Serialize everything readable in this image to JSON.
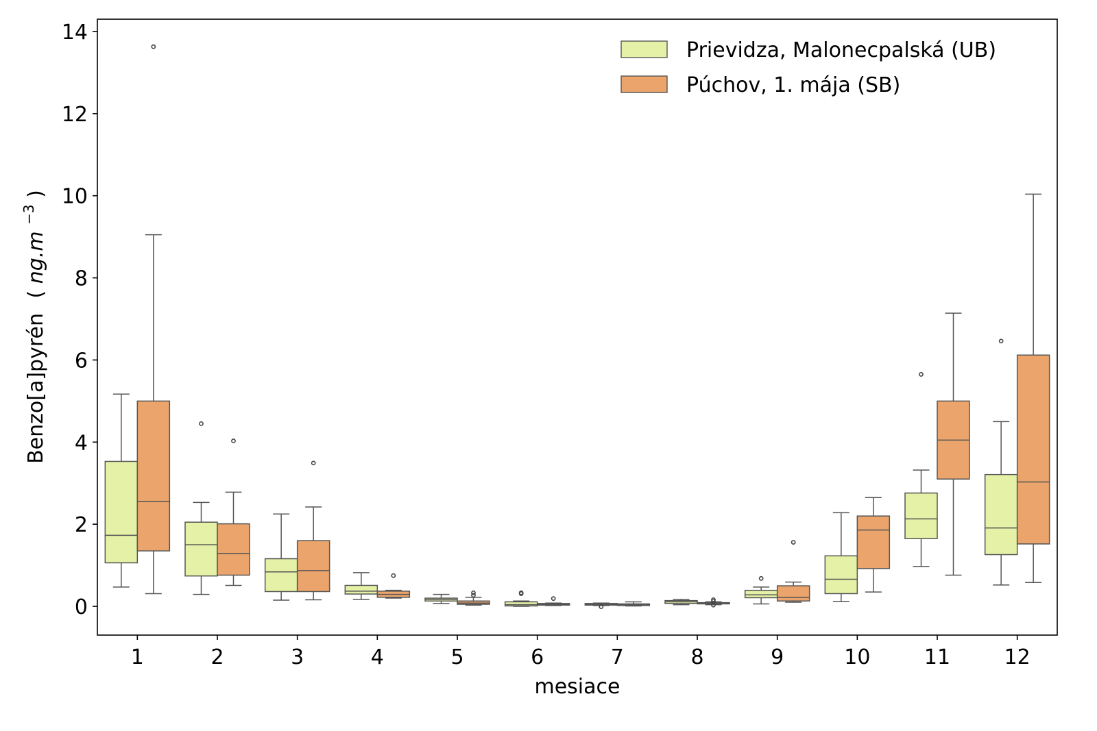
{
  "chart_data": {
    "type": "boxplot",
    "xlabel": "mesiace",
    "ylabel": {
      "main": "Benzo[a]pyrén",
      "unit_open": "(",
      "unit": "ng.m",
      "unit_exp": "−3",
      "unit_close": ")"
    },
    "categories": [
      "1",
      "2",
      "3",
      "4",
      "5",
      "6",
      "7",
      "8",
      "9",
      "10",
      "11",
      "12"
    ],
    "ylim": [
      -0.7,
      14.3
    ],
    "yticks": [
      0,
      2,
      4,
      6,
      8,
      10,
      12,
      14
    ],
    "grid": false,
    "legend_position": "top-right",
    "series": [
      {
        "name": "Prievidza, Malonecpalská (UB)",
        "color": "#e5f1a6",
        "boxes": [
          {
            "whislo": 0.47,
            "q1": 1.06,
            "med": 1.73,
            "q3": 3.53,
            "whishi": 5.17,
            "fliers": []
          },
          {
            "whislo": 0.29,
            "q1": 0.74,
            "med": 1.5,
            "q3": 2.05,
            "whishi": 2.53,
            "fliers": [
              4.45
            ]
          },
          {
            "whislo": 0.15,
            "q1": 0.36,
            "med": 0.84,
            "q3": 1.16,
            "whishi": 2.25,
            "fliers": []
          },
          {
            "whislo": 0.17,
            "q1": 0.3,
            "med": 0.37,
            "q3": 0.51,
            "whishi": 0.82,
            "fliers": []
          },
          {
            "whislo": 0.07,
            "q1": 0.13,
            "med": 0.17,
            "q3": 0.2,
            "whishi": 0.29,
            "fliers": []
          },
          {
            "whislo": 0.0,
            "q1": 0.01,
            "med": 0.04,
            "q3": 0.11,
            "whishi": 0.13,
            "fliers": [
              0.31,
              0.33
            ]
          },
          {
            "whislo": 0.02,
            "q1": 0.03,
            "med": 0.05,
            "q3": 0.07,
            "whishi": 0.08,
            "fliers": [
              -0.01
            ]
          },
          {
            "whislo": 0.04,
            "q1": 0.07,
            "med": 0.11,
            "q3": 0.14,
            "whishi": 0.17,
            "fliers": []
          },
          {
            "whislo": 0.06,
            "q1": 0.21,
            "med": 0.28,
            "q3": 0.39,
            "whishi": 0.47,
            "fliers": [
              0.68
            ]
          },
          {
            "whislo": 0.12,
            "q1": 0.31,
            "med": 0.66,
            "q3": 1.23,
            "whishi": 2.28,
            "fliers": []
          },
          {
            "whislo": 0.97,
            "q1": 1.65,
            "med": 2.13,
            "q3": 2.76,
            "whishi": 3.32,
            "fliers": [
              5.65
            ]
          },
          {
            "whislo": 0.52,
            "q1": 1.26,
            "med": 1.91,
            "q3": 3.21,
            "whishi": 4.5,
            "fliers": [
              6.46
            ]
          }
        ]
      },
      {
        "name": "Púchov, 1. mája (SB)",
        "color": "#eba46b",
        "boxes": [
          {
            "whislo": 0.31,
            "q1": 1.35,
            "med": 2.55,
            "q3": 5.0,
            "whishi": 9.05,
            "fliers": [
              13.63
            ]
          },
          {
            "whislo": 0.51,
            "q1": 0.76,
            "med": 1.29,
            "q3": 2.01,
            "whishi": 2.78,
            "fliers": [
              4.03
            ]
          },
          {
            "whislo": 0.16,
            "q1": 0.36,
            "med": 0.87,
            "q3": 1.6,
            "whishi": 2.42,
            "fliers": [
              3.49
            ]
          },
          {
            "whislo": 0.2,
            "q1": 0.22,
            "med": 0.29,
            "q3": 0.37,
            "whishi": 0.39,
            "fliers": [
              0.75
            ]
          },
          {
            "whislo": 0.03,
            "q1": 0.05,
            "med": 0.08,
            "q3": 0.13,
            "whishi": 0.22,
            "fliers": [
              0.33,
              0.27
            ]
          },
          {
            "whislo": 0.02,
            "q1": 0.03,
            "med": 0.05,
            "q3": 0.07,
            "whishi": 0.08,
            "fliers": [
              0.19
            ]
          },
          {
            "whislo": 0.01,
            "q1": 0.02,
            "med": 0.04,
            "q3": 0.06,
            "whishi": 0.11,
            "fliers": []
          },
          {
            "whislo": 0.04,
            "q1": 0.06,
            "med": 0.07,
            "q3": 0.09,
            "whishi": 0.11,
            "fliers": [
              0.16,
              0.12,
              0.03
            ]
          },
          {
            "whislo": 0.1,
            "q1": 0.13,
            "med": 0.22,
            "q3": 0.5,
            "whishi": 0.59,
            "fliers": [
              1.56
            ]
          },
          {
            "whislo": 0.35,
            "q1": 0.92,
            "med": 1.86,
            "q3": 2.2,
            "whishi": 2.65,
            "fliers": []
          },
          {
            "whislo": 0.76,
            "q1": 3.1,
            "med": 4.05,
            "q3": 5.0,
            "whishi": 7.14,
            "fliers": []
          },
          {
            "whislo": 0.58,
            "q1": 1.52,
            "med": 3.03,
            "q3": 6.12,
            "whishi": 10.04,
            "fliers": []
          }
        ]
      }
    ]
  }
}
